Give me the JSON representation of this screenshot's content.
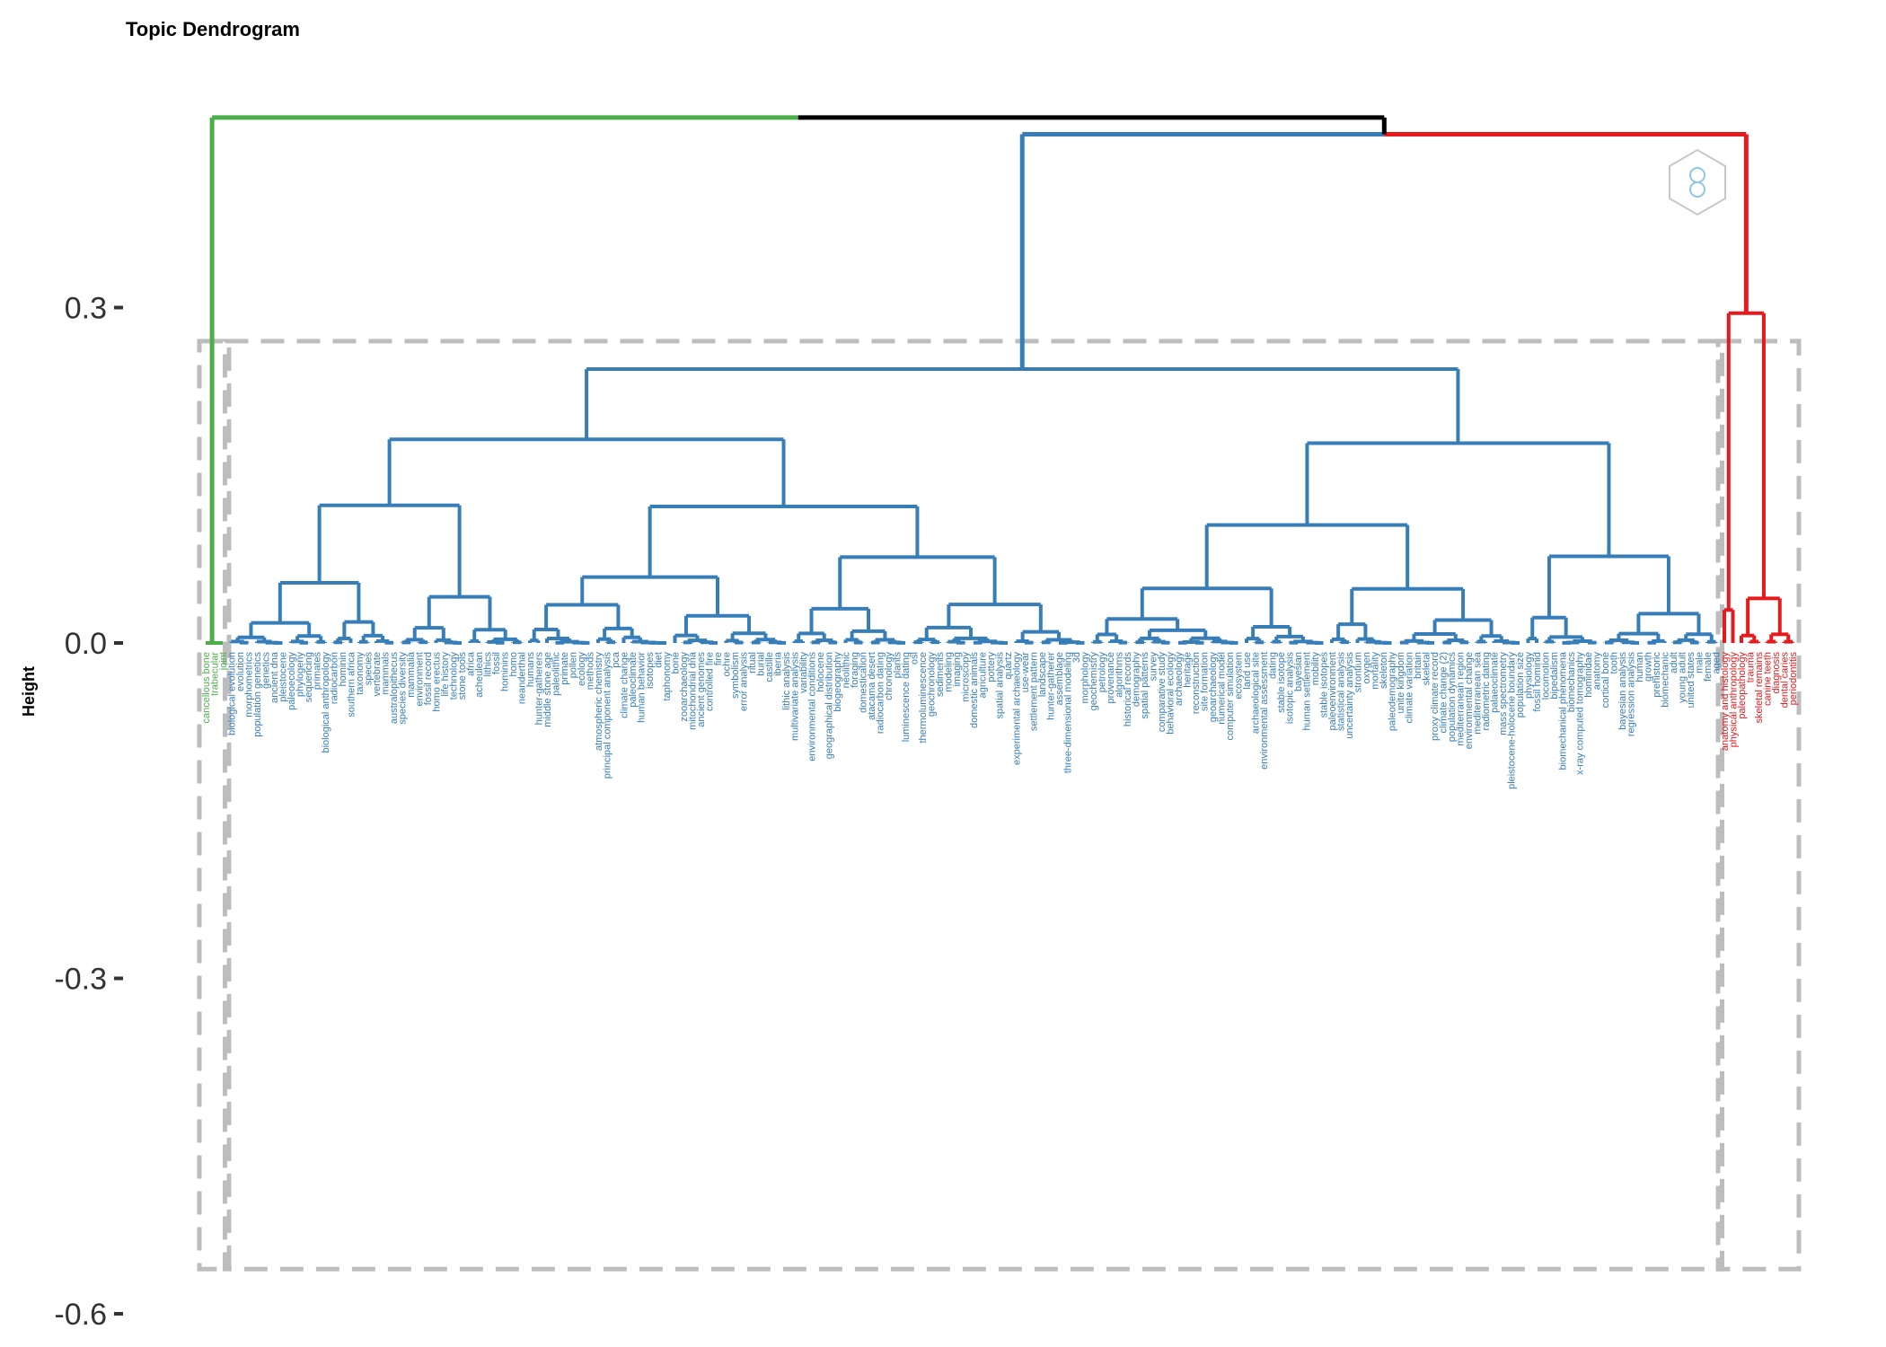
{
  "chart_data": {
    "type": "dendrogram",
    "title": "Topic Dendrogram",
    "ylabel": "Height",
    "xlabel": "",
    "ylim": [
      -0.6,
      0.45
    ],
    "yticks": [
      0.3,
      0.0,
      -0.3,
      -0.6
    ],
    "ytick_labels": [
      "0.3",
      "0.0",
      "-0.3",
      "-0.6"
    ],
    "grid": false,
    "legend": "none",
    "root_height": 0.47,
    "rect_bottom": -0.56,
    "rect_top": 0.27,
    "clusters": [
      {
        "id": "green",
        "color": "#4DAF4A",
        "merge_height": 0.0,
        "leaves": [
          "cancellous bone",
          "trabecular",
          "joint"
        ]
      },
      {
        "id": "blue",
        "color": "#377EB8",
        "merge_height": 0.245,
        "leaves": [
          "biological evolution",
          "evolution",
          "morphometrics",
          "population genetics",
          "genetics",
          "ancient dna",
          "pleistocene",
          "paleoecology",
          "phylogeny",
          "sequencing",
          "primates",
          "biological anthropology",
          "radiocarbon",
          "hominin",
          "southern africa",
          "taxonomy",
          "species",
          "vertebrate",
          "mammals",
          "australopithecus",
          "species diversity",
          "mammalia",
          "environment",
          "fossil record",
          "homo erectus",
          "life history",
          "technology",
          "stone tools",
          "africa",
          "acheulean",
          "lithics",
          "fossil",
          "hominins",
          "homo",
          "neanderthal",
          "humans",
          "hunter-gatherers",
          "middle stone age",
          "paleolithic",
          "primate",
          "pollen",
          "ecology",
          "methods",
          "atmospheric chemistry",
          "principal component analysis",
          "pca",
          "climate change",
          "paleoclimate",
          "human behavior",
          "isotopes",
          "diet",
          "taphonomy",
          "bone",
          "zooarchaeology",
          "mitochondrial dna",
          "ancient genomes",
          "controlled fire",
          "fire",
          "ochre",
          "symbolism",
          "error analysis",
          "ritual",
          "burial",
          "castille",
          "iberia",
          "lithic analysis",
          "multivariate analysis",
          "variability",
          "environmental conditions",
          "holocene",
          "geographical distribution",
          "biogeography",
          "neolithic",
          "foraging",
          "domestication",
          "atacama desert",
          "radiocarbon dating",
          "chronology",
          "plants",
          "luminescence dating",
          "osl",
          "thermoluminescence",
          "geochronology",
          "sediments",
          "modeling",
          "imaging",
          "microscopy",
          "domestic animals",
          "agriculture",
          "pottery",
          "spatial analysis",
          "quartz",
          "experimental archaeology",
          "use-wear",
          "settlement pattern",
          "landscape",
          "hunter-gatherer",
          "assemblage",
          "three-dimensional modeling",
          "3d",
          "morphology",
          "geochemistry",
          "petrology",
          "provenance",
          "algorithms",
          "historical records",
          "demography",
          "spatial patterns",
          "survey",
          "comparative study",
          "behavioral ecology",
          "archaeology",
          "heritage",
          "reconstruction",
          "site formation",
          "geoarchaeology",
          "numerical model",
          "computer simulation",
          "ecosystem",
          "land use",
          "archaeological site",
          "environmental assessment",
          "dating",
          "stable isotope",
          "isotopic analysis",
          "bayesian",
          "human settlement",
          "mobility",
          "stable isotopes",
          "paleoenvironment",
          "statistical analysis",
          "uncertainty analysis",
          "strontium",
          "oxygen",
          "mortality",
          "skeleton",
          "paleodemography",
          "unite kingdom",
          "climate variation",
          "britain",
          "skeletal",
          "proxy climate record",
          "climate change (2)",
          "population dynamics",
          "mediterranean region",
          "environmental change",
          "mediterranean sea",
          "radiometric dating",
          "palaeoclimate",
          "mass spectrometry",
          "pleistocene-holocene boundary",
          "population size",
          "physiology",
          "fossil hominid",
          "locomotion",
          "bipedalism",
          "biomechanical phenomena",
          "biomechanics",
          "x-ray computed tomography",
          "hominidae",
          "anatomy",
          "cortical bone",
          "tooth",
          "bayesian analysis",
          "regression analysis",
          "human",
          "growth",
          "prehistoric",
          "biomechanic",
          "adult",
          "young adult",
          "united states",
          "male",
          "female",
          "aged"
        ]
      },
      {
        "id": "red",
        "color": "#E41A1C",
        "merge_height": 0.295,
        "leaves": [
          "anatomy and histology",
          "physical anthropology",
          "paleopathology",
          "trauma",
          "skeletal remains",
          "canine teeth",
          "diagnosis",
          "dental caries",
          "periodontitis"
        ]
      }
    ]
  }
}
